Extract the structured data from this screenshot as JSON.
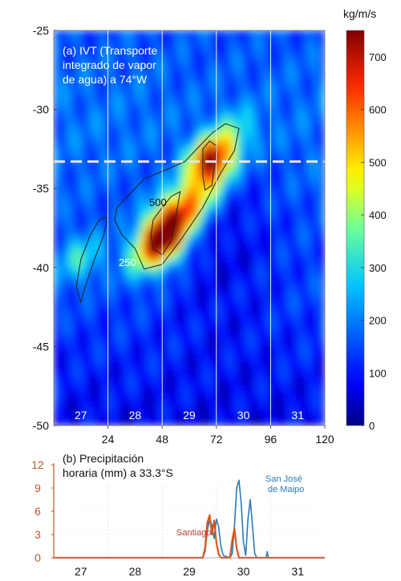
{
  "chart_data": [
    {
      "type": "heatmap",
      "panel_title": "(a) IVT (Transporte integrado de vapor de agua) a 74°W",
      "title_lines": [
        "(a) IVT (Transporte",
        "integrado de vapor",
        "de agua) a 74°W"
      ],
      "colorbar_label": "kg/m/s",
      "colorbar_ticks": [
        "0",
        "100",
        "200",
        "300",
        "400",
        "500",
        "600",
        "700"
      ],
      "colorbar_range": [
        0,
        750
      ],
      "y_ticks": [
        "-25",
        "-30",
        "-35",
        "-40",
        "-45",
        "-50"
      ],
      "y_range": [
        -50,
        -25
      ],
      "x_ticks": [
        "24",
        "48",
        "72",
        "96",
        "120"
      ],
      "x_range": [
        0,
        120
      ],
      "day_labels": [
        "27",
        "28",
        "29",
        "30",
        "31"
      ],
      "day_boundaries_hours": [
        24,
        48,
        72,
        96
      ],
      "dashed_line_lat": -33.3,
      "contour_labels": [
        "500",
        "250"
      ],
      "contour_levels": [
        250,
        500
      ],
      "ivt_blobs": [
        {
          "t": 48,
          "lat": -38.3,
          "peak": 730
        },
        {
          "t": 54,
          "lat": -36.8,
          "peak": 560
        },
        {
          "t": 70,
          "lat": -33.3,
          "peak": 740
        },
        {
          "t": 64,
          "lat": -35.5,
          "peak": 420
        },
        {
          "t": 12,
          "lat": -39.5,
          "peak": 320
        },
        {
          "t": 80,
          "lat": -31.5,
          "peak": 300
        },
        {
          "t": 40,
          "lat": -39.5,
          "peak": 300
        }
      ]
    },
    {
      "type": "line",
      "panel_title": "(b) Precipitación horaria (mm) a 33.3°S",
      "title_lines": [
        "(b) Precipitación",
        "horaria (mm) a 33.3°S"
      ],
      "y_ticks": [
        "0",
        "3",
        "6",
        "9",
        "12"
      ],
      "y_range": [
        0,
        12
      ],
      "day_labels": [
        "27",
        "28",
        "29",
        "30",
        "31"
      ],
      "series": [
        {
          "name": "San José de Maipo",
          "label_lines": [
            "San José",
            "de Maipo"
          ],
          "color": "#2a7ab8",
          "points": [
            [
              0,
              0
            ],
            [
              66,
              0
            ],
            [
              67,
              0.8
            ],
            [
              68,
              3.5
            ],
            [
              69,
              5.0
            ],
            [
              70,
              4.2
            ],
            [
              71,
              2.5
            ],
            [
              72,
              5.0
            ],
            [
              73,
              4.0
            ],
            [
              74,
              1.5
            ],
            [
              75,
              0.3
            ],
            [
              78,
              0
            ],
            [
              79,
              0.5
            ],
            [
              80,
              4.0
            ],
            [
              81,
              9.0
            ],
            [
              82,
              10.0
            ],
            [
              83,
              7.0
            ],
            [
              84,
              2.0
            ],
            [
              85,
              0.3
            ],
            [
              86,
              5.0
            ],
            [
              87,
              7.5
            ],
            [
              88,
              4.0
            ],
            [
              89,
              0.5
            ],
            [
              90,
              0
            ],
            [
              94,
              0
            ],
            [
              94.5,
              0.8
            ],
            [
              95,
              0
            ],
            [
              120,
              0
            ]
          ]
        },
        {
          "name": "Santiago",
          "label_lines": [
            "Santiago"
          ],
          "color": "#d9581e",
          "points": [
            [
              0,
              0
            ],
            [
              66,
              0
            ],
            [
              67,
              1.2
            ],
            [
              68,
              4.5
            ],
            [
              69,
              5.5
            ],
            [
              70,
              3.0
            ],
            [
              71,
              4.8
            ],
            [
              72,
              2.0
            ],
            [
              73,
              0.5
            ],
            [
              74,
              0
            ],
            [
              78,
              0
            ],
            [
              79,
              2.2
            ],
            [
              80,
              3.8
            ],
            [
              81,
              1.2
            ],
            [
              82,
              0
            ],
            [
              120,
              0
            ]
          ]
        }
      ]
    }
  ],
  "colors": {
    "panel_b_axis": "#c25a28",
    "dashed_line": "#e6e6e6",
    "day_lines": "#ffffff",
    "contour": "#222222"
  }
}
